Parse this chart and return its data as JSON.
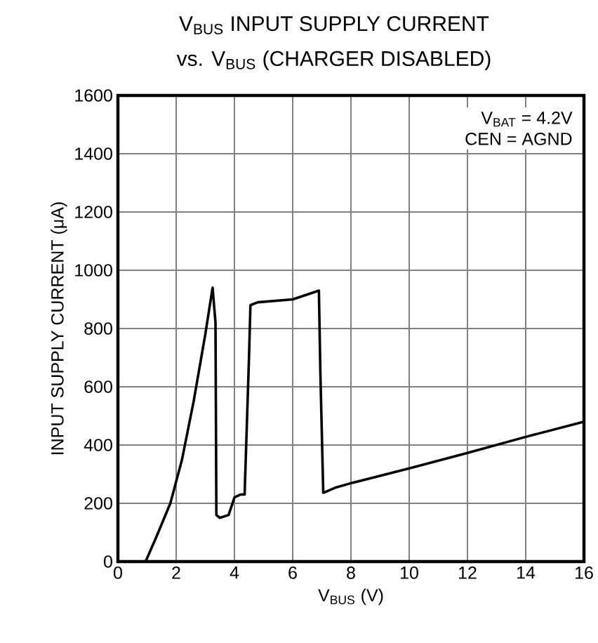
{
  "chart_data": {
    "type": "line",
    "title": "V$_{BUS}$ INPUT SUPPLY CURRENT",
    "subtitle": "vs. V$_{BUS}$ (CHARGER DISABLED)",
    "xlabel": "V$_{BUS}$ (V)",
    "ylabel": "INPUT SUPPLY CURRENT (μA)",
    "annotations": [
      "V$_{BAT}$ = 4.2V",
      "CEN = AGND"
    ],
    "xlim": [
      0,
      16
    ],
    "xticks": [
      0,
      2,
      4,
      6,
      8,
      10,
      12,
      14,
      16
    ],
    "ylim": [
      0,
      1600
    ],
    "yticks": [
      0,
      200,
      400,
      600,
      800,
      1000,
      1200,
      1400,
      1600
    ],
    "grid": true,
    "marker": "none",
    "line_style": "solid",
    "series": [
      {
        "color": "#000000",
        "x": [
          0,
          0.95,
          1.3,
          1.8,
          2.2,
          2.6,
          3.0,
          3.25,
          3.35,
          3.38,
          3.5,
          3.8,
          4.0,
          4.2,
          4.35,
          4.5,
          4.55,
          4.8,
          6.0,
          6.9,
          6.95,
          7.05,
          7.5,
          8,
          10,
          12,
          14,
          16
        ],
        "values": [
          0,
          0,
          80,
          200,
          350,
          550,
          780,
          940,
          820,
          160,
          150,
          160,
          220,
          230,
          230,
          700,
          880,
          890,
          900,
          930,
          650,
          236,
          255,
          269,
          320,
          373,
          428,
          480
        ]
      }
    ]
  }
}
